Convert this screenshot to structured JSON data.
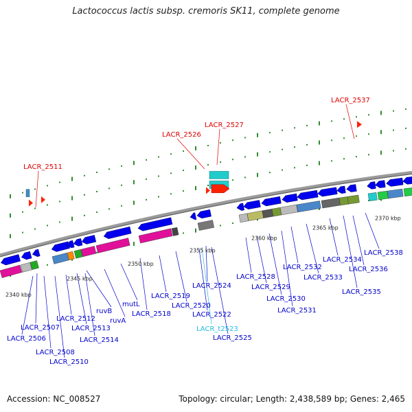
{
  "title": "Lactococcus lactis subsp. cremoris SK11, complete genome",
  "footer": {
    "accession_label": "Accession:",
    "accession_value": "NC_008527",
    "topology_text": "Topology: circular; Length: 2,438,589 bp; Genes: 2,465"
  },
  "colors": {
    "blue_label": "#0000cc",
    "red_label": "#dd0000",
    "cyan_label": "#22bbdd",
    "backbone": "#9a9a9a",
    "dots": "#2e8b2e"
  },
  "genome_map": {
    "tick_labels": [
      "2340 kbp",
      "2345 kbp",
      "2350 kbp",
      "2355 kbp",
      "2360 kbp",
      "2365 kbp",
      "2370 kbp"
    ],
    "blue_labels": [
      "LACR_2506",
      "LACR_2507",
      "LACR_2508",
      "LACR_2510",
      "LACR_2512",
      "LACR_2513",
      "LACR_2514",
      "ruvB",
      "ruvA",
      "mutL",
      "LACR_2518",
      "LACR_2519",
      "LACR_2520",
      "LACR_2522",
      "LACR_2524",
      "LACR_2525",
      "LACR_2528",
      "LACR_2529",
      "LACR_2530",
      "LACR_2531",
      "LACR_2532",
      "LACR_2533",
      "LACR_2534",
      "LACR_2535",
      "LACR_2536",
      "LACR_2538"
    ],
    "red_labels": [
      "LACR_2511",
      "LACR_2526",
      "LACR_2527",
      "LACR_2537"
    ],
    "cyan_labels": [
      "LACR_t2523"
    ]
  }
}
